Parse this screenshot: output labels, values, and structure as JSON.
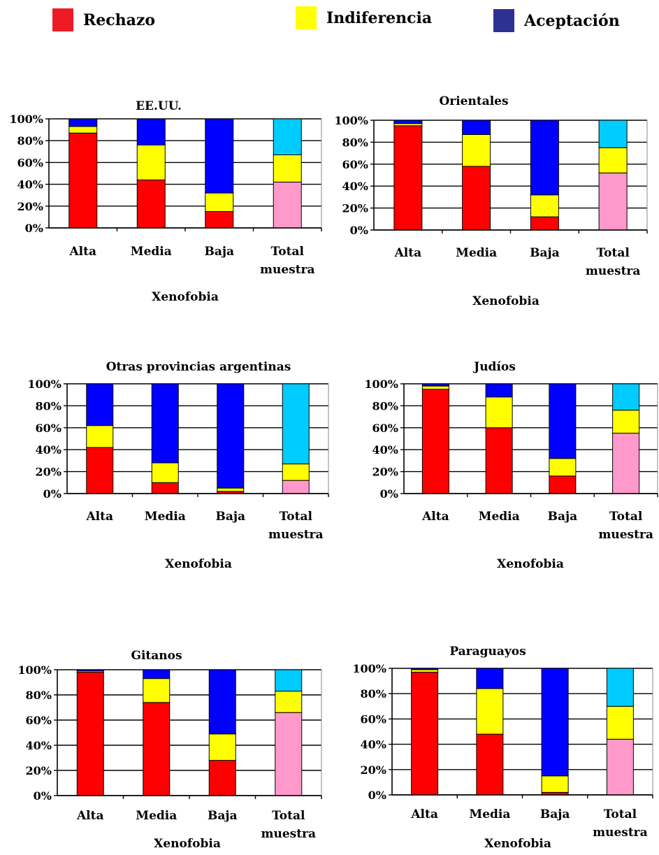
{
  "legend": [
    {
      "label": "Rechazo",
      "color": "#ed1c24"
    },
    {
      "label": "Indiferencia",
      "color": "#ffff00"
    },
    {
      "label": "Aceptación",
      "color": "#2e3192"
    }
  ],
  "colors": {
    "rechazo": "#ff0000",
    "indiferencia": "#ffff00",
    "aceptacion": "#0000ff",
    "total_rechazo": "#ff99cc",
    "total_aceptacion": "#00ccff",
    "grid": "#000000"
  },
  "chart_data": [
    {
      "type": "bar",
      "stacked": true,
      "title": "EE.UU.",
      "xlabel": "Xenofobia",
      "ylabel": "",
      "ylim": [
        0,
        100
      ],
      "yticks": [
        "100%",
        "80%",
        "60%",
        "40%",
        "20%",
        "0%"
      ],
      "categories": [
        [
          "Alta"
        ],
        [
          "Media"
        ],
        [
          "Baja"
        ],
        [
          "Total",
          "muestra"
        ]
      ],
      "series": [
        {
          "name": "Rechazo",
          "values": [
            87,
            44,
            15,
            42
          ]
        },
        {
          "name": "Indiferencia",
          "values": [
            6,
            32,
            17,
            25
          ]
        },
        {
          "name": "Aceptación",
          "values": [
            7,
            24,
            68,
            33
          ]
        }
      ]
    },
    {
      "type": "bar",
      "stacked": true,
      "title": "Orientales",
      "xlabel": "Xenofobia",
      "ylabel": "",
      "ylim": [
        0,
        100
      ],
      "yticks": [
        "100%",
        "80%",
        "60%",
        "40%",
        "20%",
        "0%"
      ],
      "categories": [
        [
          "Alta"
        ],
        [
          "Media"
        ],
        [
          "Baja"
        ],
        [
          "Total",
          "muestra"
        ]
      ],
      "series": [
        {
          "name": "Rechazo",
          "values": [
            95,
            58,
            12,
            52
          ]
        },
        {
          "name": "Indiferencia",
          "values": [
            2,
            29,
            20,
            23
          ]
        },
        {
          "name": "Aceptación",
          "values": [
            3,
            13,
            68,
            25
          ]
        }
      ]
    },
    {
      "type": "bar",
      "stacked": true,
      "title": "Otras provincias argentinas",
      "xlabel": "Xenofobia",
      "ylabel": "",
      "ylim": [
        0,
        100
      ],
      "yticks": [
        "100%",
        "80%",
        "60%",
        "40%",
        "20%",
        "0%"
      ],
      "categories": [
        [
          "Alta"
        ],
        [
          "Media"
        ],
        [
          "Baja"
        ],
        [
          "Total",
          "muestra"
        ]
      ],
      "series": [
        {
          "name": "Rechazo",
          "values": [
            42,
            10,
            2,
            12
          ]
        },
        {
          "name": "Indiferencia",
          "values": [
            20,
            18,
            3,
            15
          ]
        },
        {
          "name": "Aceptación",
          "values": [
            38,
            72,
            95,
            73
          ]
        }
      ]
    },
    {
      "type": "bar",
      "stacked": true,
      "title": "Judíos",
      "xlabel": "Xenofobia",
      "ylabel": "",
      "ylim": [
        0,
        100
      ],
      "yticks": [
        "100%",
        "80%",
        "60%",
        "40%",
        "20%",
        "0%"
      ],
      "categories": [
        [
          "Alta"
        ],
        [
          "Media"
        ],
        [
          "Baja"
        ],
        [
          "Total",
          "muestra"
        ]
      ],
      "series": [
        {
          "name": "Rechazo",
          "values": [
            95,
            60,
            16,
            55
          ]
        },
        {
          "name": "Indiferencia",
          "values": [
            3,
            28,
            16,
            21
          ]
        },
        {
          "name": "Aceptación",
          "values": [
            2,
            12,
            68,
            24
          ]
        }
      ]
    },
    {
      "type": "bar",
      "stacked": true,
      "title": "Gitanos",
      "xlabel": "Xenofobia",
      "ylabel": "",
      "ylim": [
        0,
        100
      ],
      "yticks": [
        "100%",
        "80%",
        "60%",
        "40%",
        "20%",
        "0%"
      ],
      "categories": [
        [
          "Alta"
        ],
        [
          "Media"
        ],
        [
          "Baja"
        ],
        [
          "Total",
          "muestra"
        ]
      ],
      "series": [
        {
          "name": "Rechazo",
          "values": [
            98,
            74,
            28,
            66
          ]
        },
        {
          "name": "Indiferencia",
          "values": [
            1,
            19,
            21,
            17
          ]
        },
        {
          "name": "Aceptación",
          "values": [
            1,
            7,
            51,
            17
          ]
        }
      ]
    },
    {
      "type": "bar",
      "stacked": true,
      "title": "Paraguayos",
      "xlabel": "Xenofobia",
      "ylabel": "",
      "ylim": [
        0,
        100
      ],
      "yticks": [
        "100%",
        "80%",
        "60%",
        "40%",
        "20%",
        "0%"
      ],
      "categories": [
        [
          "Alta"
        ],
        [
          "Media"
        ],
        [
          "Baja"
        ],
        [
          "Total",
          "muestra"
        ]
      ],
      "series": [
        {
          "name": "Rechazo",
          "values": [
            97,
            48,
            2,
            44
          ]
        },
        {
          "name": "Indiferencia",
          "values": [
            2,
            36,
            13,
            26
          ]
        },
        {
          "name": "Aceptación",
          "values": [
            1,
            16,
            85,
            30
          ]
        }
      ]
    }
  ]
}
